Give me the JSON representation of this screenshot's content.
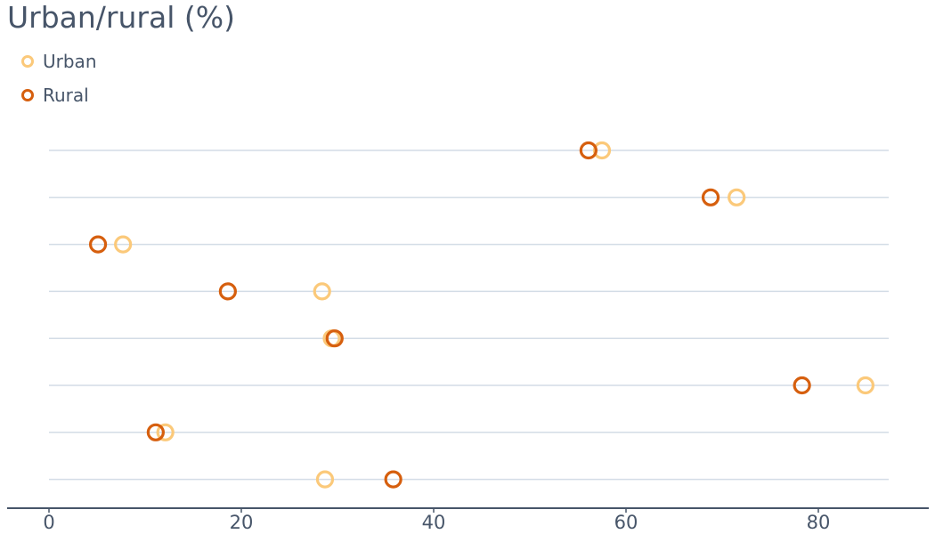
{
  "chart_data": {
    "type": "scatter",
    "title": "Urban/rural (%)",
    "xlabel": "",
    "ylabel": "",
    "xlim": [
      0,
      91
    ],
    "xticks": [
      0,
      20,
      40,
      60,
      80
    ],
    "grid": true,
    "legend_position": "top-left",
    "series": [
      {
        "name": "Urban",
        "color": "#fbc97a",
        "values": [
          57.5,
          71.5,
          7.7,
          28.4,
          29.4,
          84.9,
          12.1,
          28.7
        ]
      },
      {
        "name": "Rural",
        "color": "#d65f0e",
        "values": [
          56.1,
          68.8,
          5.1,
          18.6,
          29.7,
          78.3,
          11.1,
          35.8
        ]
      }
    ]
  }
}
